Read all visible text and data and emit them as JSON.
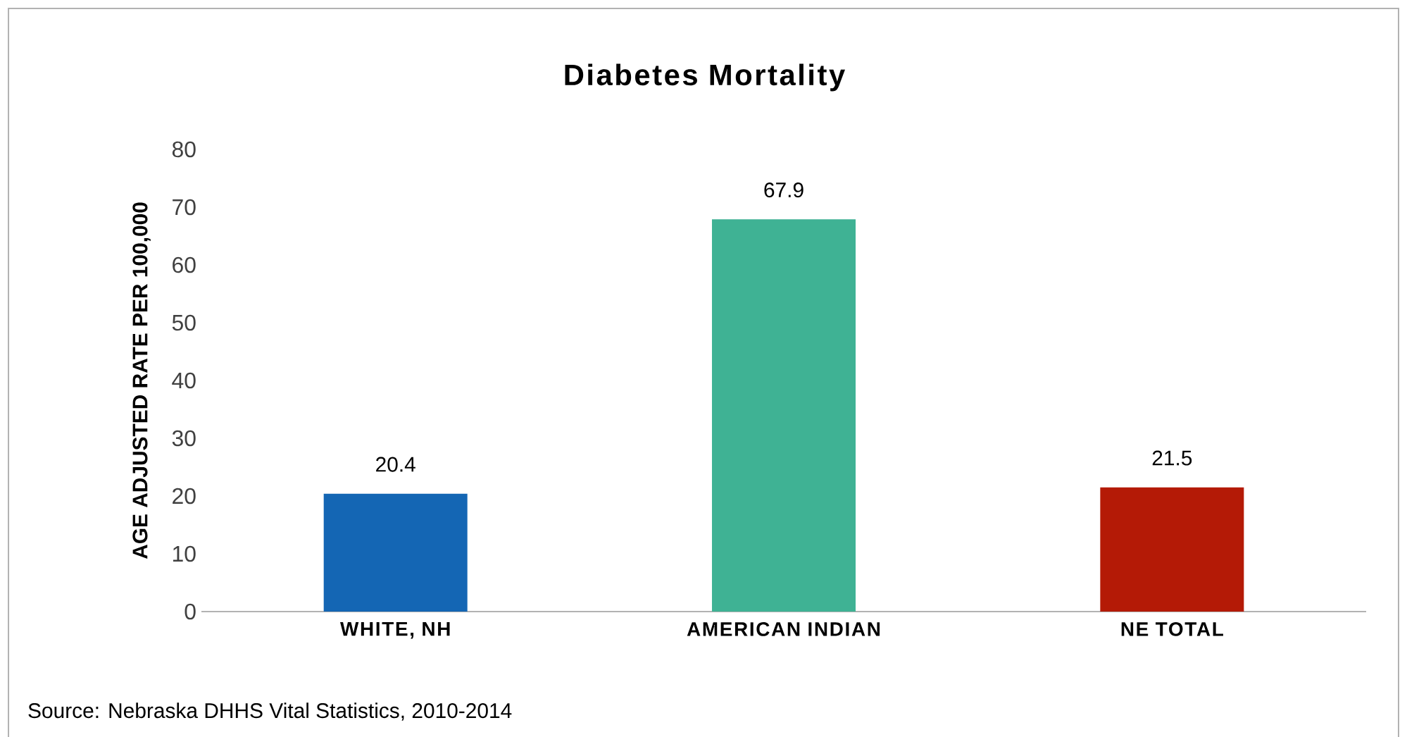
{
  "chart_data": {
    "type": "bar",
    "title": "Diabetes Mortality",
    "ylabel": "AGE ADJUSTED RATE PER 100,000",
    "categories": [
      "WHITE, NH",
      "AMERICAN INDIAN",
      "NE TOTAL"
    ],
    "values": [
      20.4,
      67.9,
      21.5
    ],
    "colors": [
      "#1466b4",
      "#3fb294",
      "#b41a06"
    ],
    "ylim": [
      0,
      80
    ],
    "yticks": [
      0,
      10,
      20,
      30,
      40,
      50,
      60,
      70,
      80
    ],
    "data_labels": true,
    "annotations": [
      "Source: Nebraska DHHS Vital Statistics, 2010-2014"
    ]
  }
}
